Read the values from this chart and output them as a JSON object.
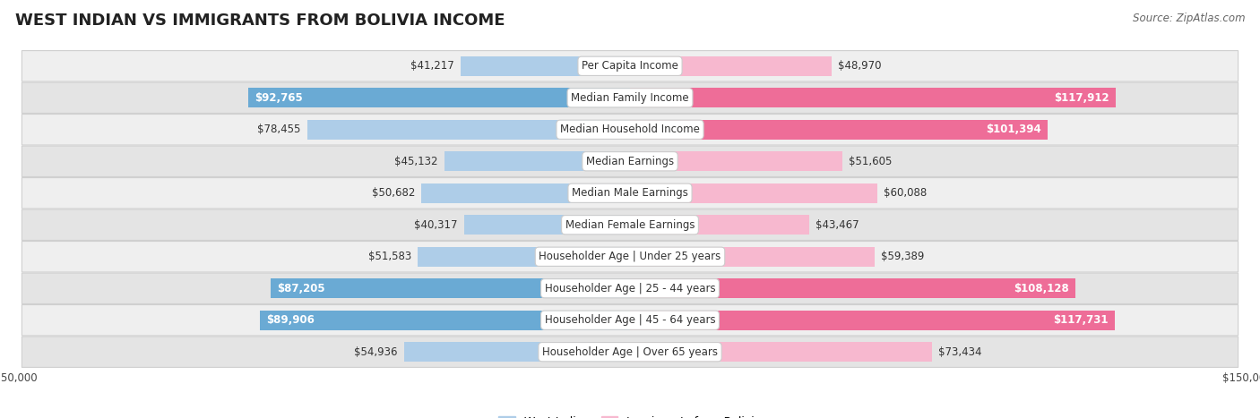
{
  "title": "WEST INDIAN VS IMMIGRANTS FROM BOLIVIA INCOME",
  "source": "Source: ZipAtlas.com",
  "categories": [
    "Per Capita Income",
    "Median Family Income",
    "Median Household Income",
    "Median Earnings",
    "Median Male Earnings",
    "Median Female Earnings",
    "Householder Age | Under 25 years",
    "Householder Age | 25 - 44 years",
    "Householder Age | 45 - 64 years",
    "Householder Age | Over 65 years"
  ],
  "west_indian": [
    41217,
    92765,
    78455,
    45132,
    50682,
    40317,
    51583,
    87205,
    89906,
    54936
  ],
  "bolivia": [
    48970,
    117912,
    101394,
    51605,
    60088,
    43467,
    59389,
    108128,
    117731,
    73434
  ],
  "max_val": 150000,
  "west_indian_light": "#AECDE8",
  "west_indian_dark": "#6aaad4",
  "bolivia_light": "#F7B8CF",
  "bolivia_dark": "#EE6D98",
  "row_bg_even": "#efefef",
  "row_bg_odd": "#e4e4e4",
  "row_border": "#d0d0d0",
  "legend_west_indian": "West Indian",
  "legend_bolivia": "Immigrants from Bolivia",
  "title_fontsize": 13,
  "label_fontsize": 8.5,
  "source_fontsize": 8.5,
  "legend_fontsize": 9,
  "threshold_dark": 0.55
}
